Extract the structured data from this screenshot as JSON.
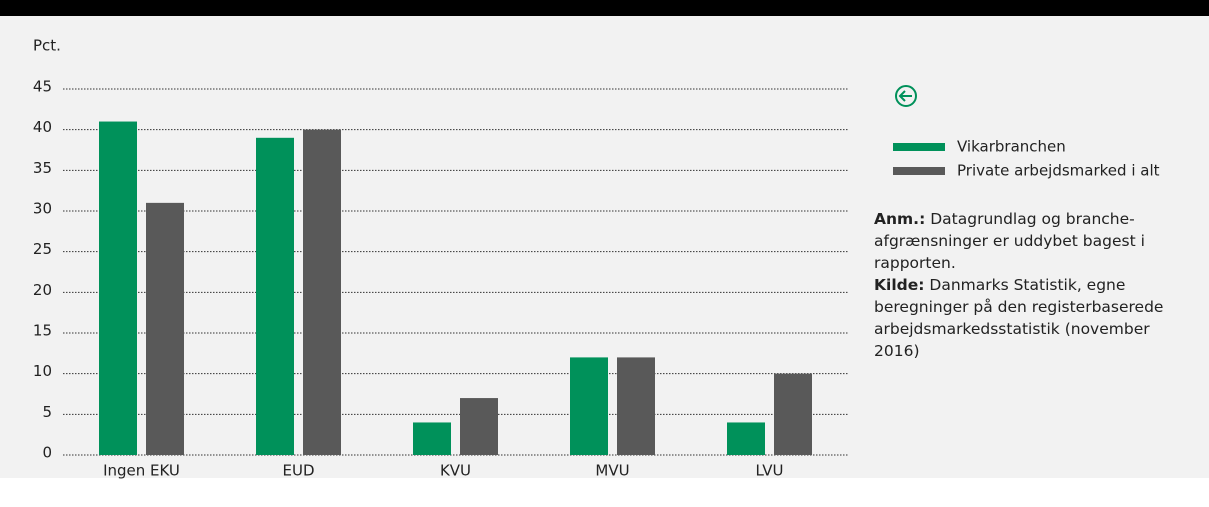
{
  "chart_data": {
    "type": "bar",
    "y_label": "Pct.",
    "categories": [
      "Ingen EKU",
      "EUD",
      "KVU",
      "MVU",
      "LVU"
    ],
    "series": [
      {
        "name": "Vikarbranchen",
        "color": "#00915a",
        "values": [
          41,
          39,
          4,
          12,
          4
        ]
      },
      {
        "name": "Private arbejdsmarked i alt",
        "color": "#595959",
        "values": [
          31,
          40,
          7,
          12,
          10
        ]
      }
    ],
    "ylim": [
      0,
      45
    ],
    "yticks": [
      0,
      5,
      10,
      15,
      20,
      25,
      30,
      35,
      40,
      45
    ],
    "grid": true
  },
  "notes": [
    {
      "label": "Anm.:",
      "text": "Datagrundlag og branche-afgrænsninger er uddybet bagest i rapporten."
    },
    {
      "label": "Kilde:",
      "text": "Danmarks Statistik, egne beregninger på den registerbaserede arbejdsmarkedsstatistik (november 2016)"
    }
  ]
}
